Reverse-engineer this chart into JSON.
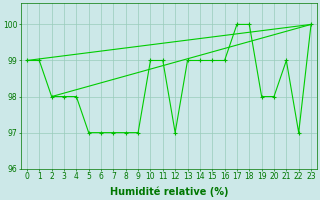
{
  "x": [
    0,
    1,
    2,
    3,
    4,
    5,
    6,
    7,
    8,
    9,
    10,
    11,
    12,
    13,
    14,
    15,
    16,
    17,
    18,
    19,
    20,
    21,
    22,
    23
  ],
  "y": [
    99,
    99,
    98,
    98,
    98,
    97,
    97,
    97,
    97,
    97,
    99,
    99,
    97,
    99,
    99,
    99,
    99,
    100,
    100,
    98,
    98,
    99,
    97,
    100
  ],
  "trend1_x": [
    0,
    23
  ],
  "trend1_y": [
    99,
    100
  ],
  "trend2_x": [
    2,
    23
  ],
  "trend2_y": [
    98,
    100
  ],
  "line_color": "#00cc00",
  "marker": "+",
  "marker_color": "#00bb00",
  "bg_color": "#cce8e8",
  "grid_color": "#99ccbb",
  "xlabel": "Humidité relative (%)",
  "ylim": [
    96,
    100.6
  ],
  "xlim": [
    -0.5,
    23.5
  ],
  "yticks": [
    96,
    97,
    98,
    99,
    100
  ],
  "xticks": [
    0,
    1,
    2,
    3,
    4,
    5,
    6,
    7,
    8,
    9,
    10,
    11,
    12,
    13,
    14,
    15,
    16,
    17,
    18,
    19,
    20,
    21,
    22,
    23
  ],
  "tick_color": "#007700",
  "xlabel_color": "#007700",
  "font_size": 5.5,
  "xlabel_fontsize": 7
}
